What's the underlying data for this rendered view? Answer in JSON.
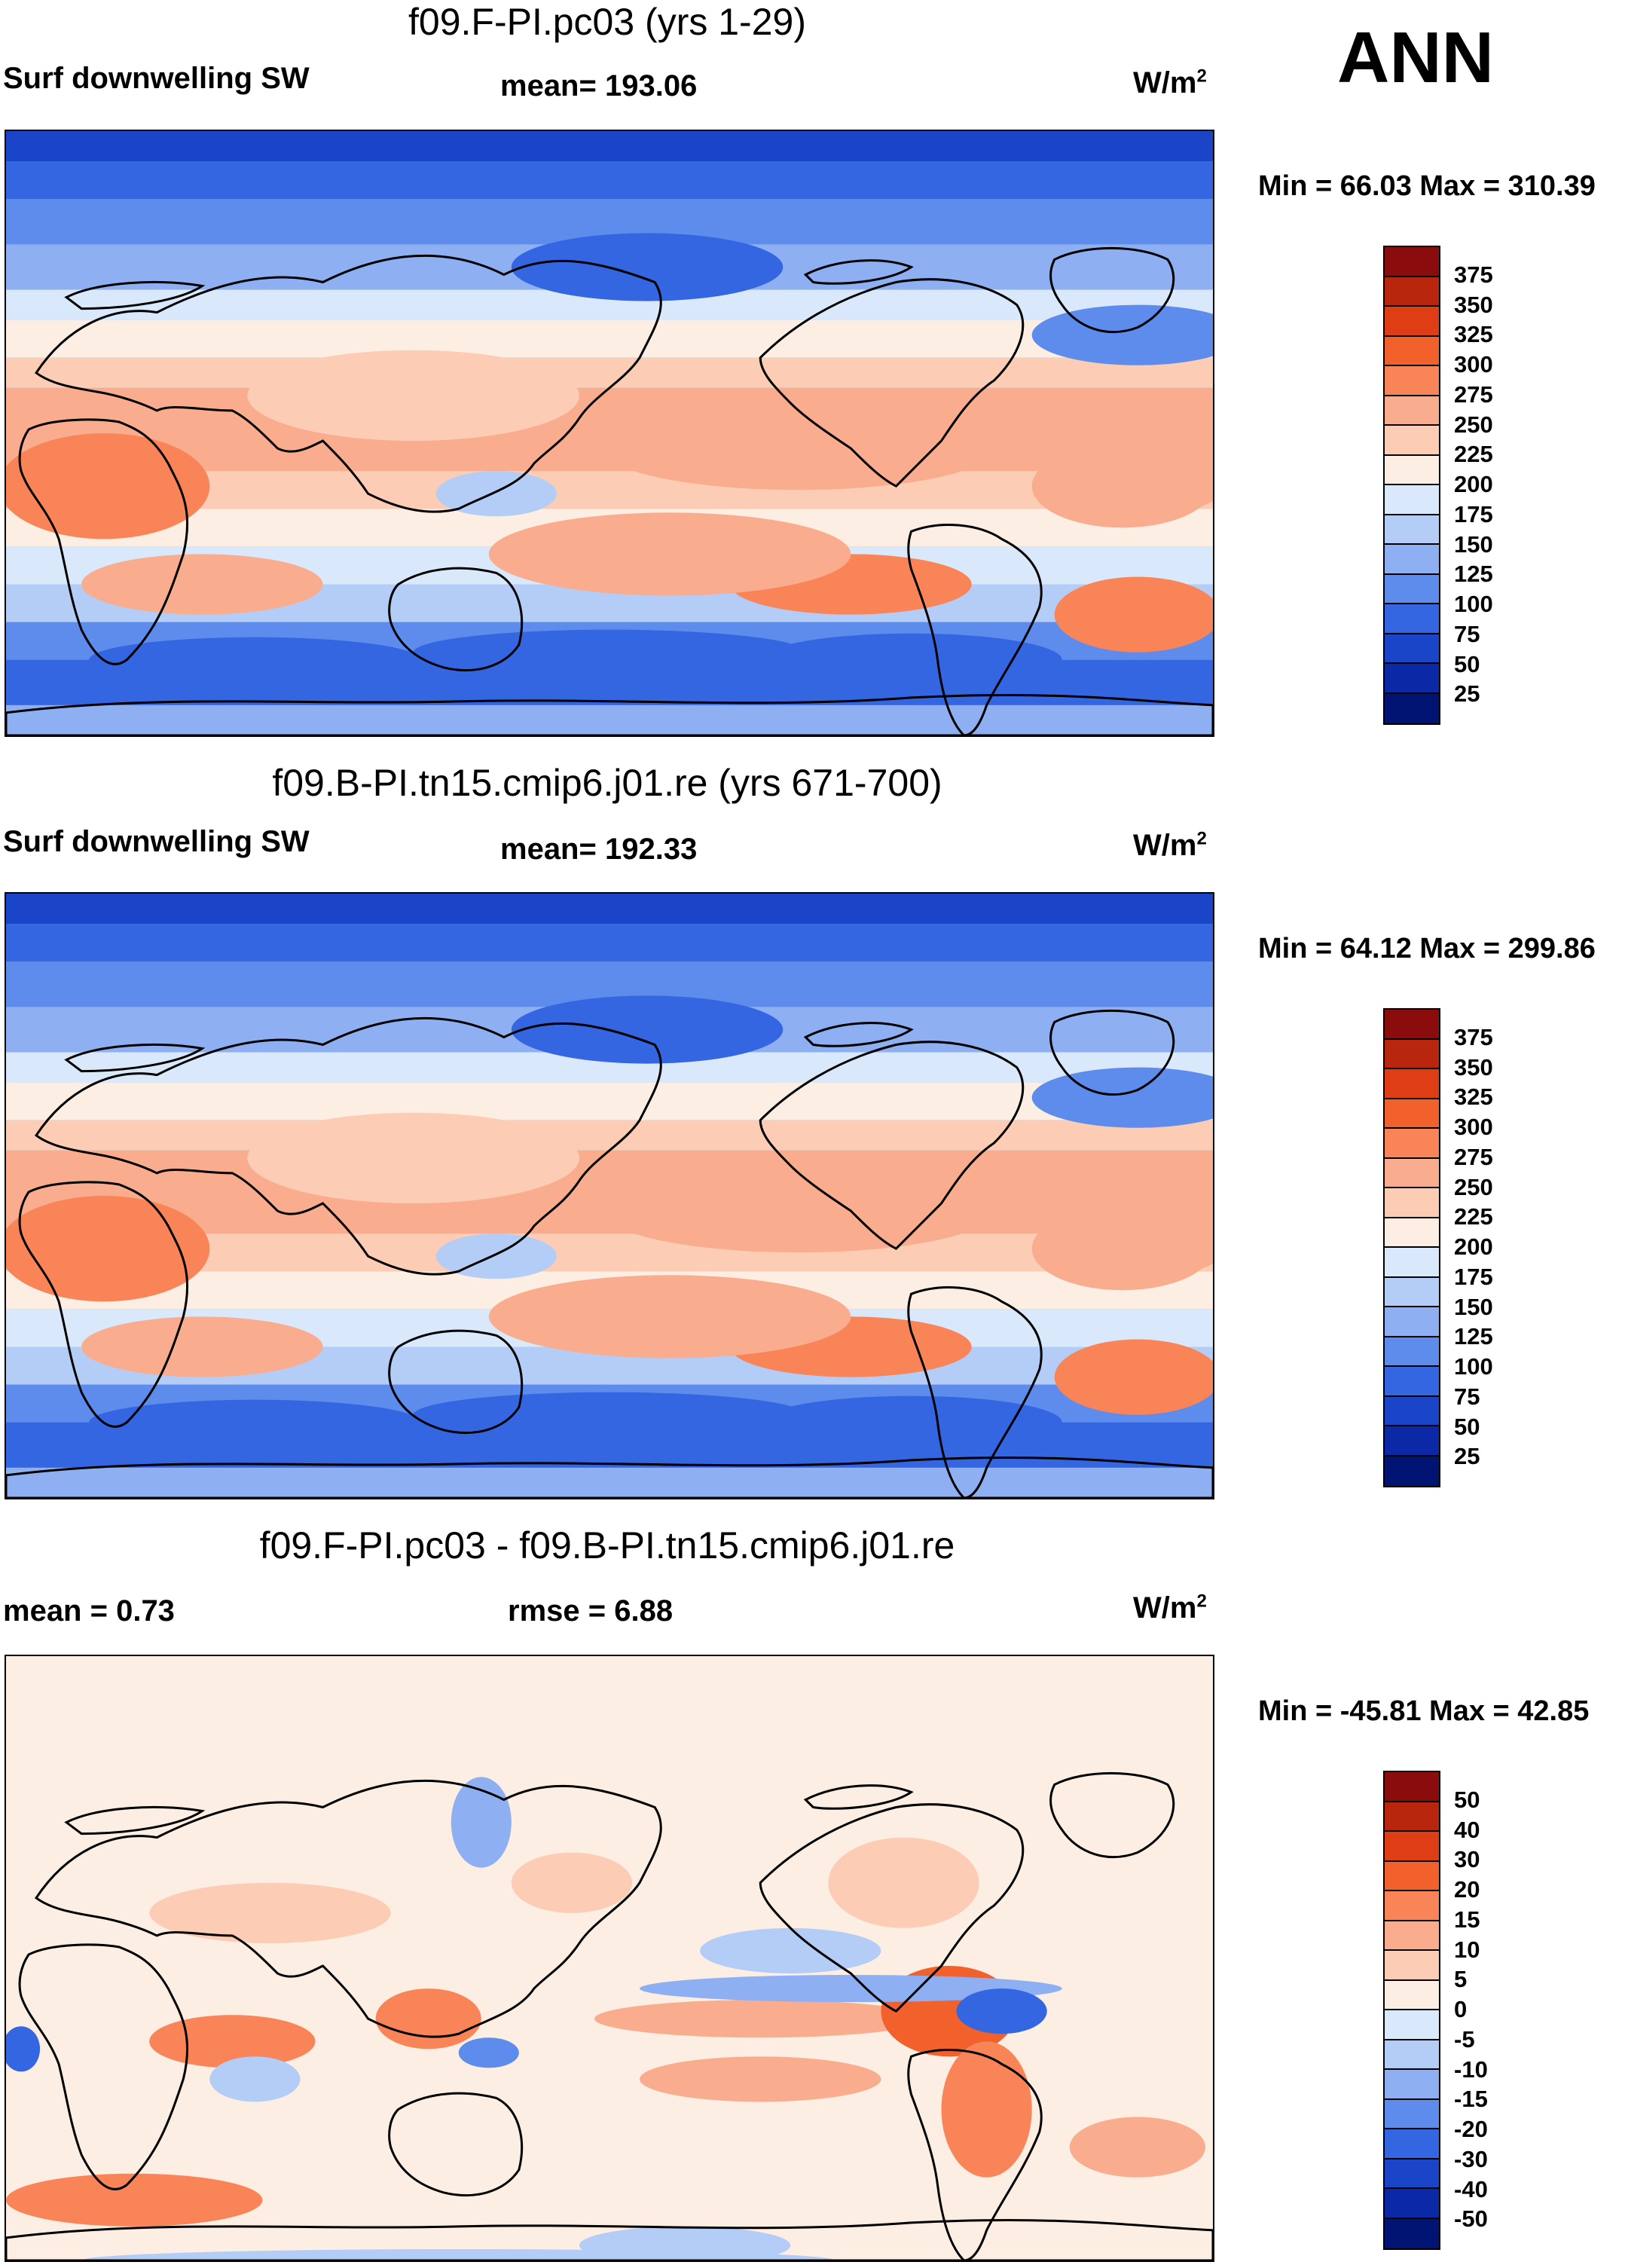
{
  "season": "ANN",
  "panels": [
    {
      "title": "f09.F-PI.pc03 (yrs 1-29)",
      "left": "Surf downwelling SW",
      "mid": "mean= 193.06",
      "units": "W/m",
      "units_sup": "2",
      "minmax": "Min =  66.03 Max = 310.39",
      "colorbar": {
        "labels": [
          "375",
          "350",
          "325",
          "300",
          "275",
          "250",
          "225",
          "200",
          "175",
          "150",
          "125",
          "100",
          "75",
          "50",
          "25"
        ],
        "colors": [
          "#8b0c0c",
          "#b9260e",
          "#df3e14",
          "#f2602c",
          "#f88458",
          "#f9ad8e",
          "#fccdb4",
          "#fdeee3",
          "#d9e8fb",
          "#b4cdf7",
          "#8eb0f3",
          "#5e8cec",
          "#3366e0",
          "#1a45c8",
          "#0b29a6",
          "#011473"
        ]
      },
      "map_style": "absolute"
    },
    {
      "title": "f09.B-PI.tn15.cmip6.j01.re (yrs 671-700)",
      "left": "Surf downwelling SW",
      "mid": "mean= 192.33",
      "units": "W/m",
      "units_sup": "2",
      "minmax": "Min =  64.12 Max = 299.86",
      "colorbar": {
        "labels": [
          "375",
          "350",
          "325",
          "300",
          "275",
          "250",
          "225",
          "200",
          "175",
          "150",
          "125",
          "100",
          "75",
          "50",
          "25"
        ],
        "colors": [
          "#8b0c0c",
          "#b9260e",
          "#df3e14",
          "#f2602c",
          "#f88458",
          "#f9ad8e",
          "#fccdb4",
          "#fdeee3",
          "#d9e8fb",
          "#b4cdf7",
          "#8eb0f3",
          "#5e8cec",
          "#3366e0",
          "#1a45c8",
          "#0b29a6",
          "#011473"
        ]
      },
      "map_style": "absolute"
    },
    {
      "title": "f09.F-PI.pc03 - f09.B-PI.tn15.cmip6.j01.re",
      "left": "mean =   0.73",
      "mid": "rmse =   6.88",
      "units": "W/m",
      "units_sup": "2",
      "minmax": "Min = -45.81 Max =  42.85",
      "colorbar": {
        "labels": [
          "50",
          "40",
          "30",
          "20",
          "15",
          "10",
          "5",
          "0",
          "-5",
          "-10",
          "-15",
          "-20",
          "-30",
          "-40",
          "-50"
        ],
        "colors": [
          "#8b0c0c",
          "#b9260e",
          "#df3e14",
          "#f2602c",
          "#f88458",
          "#f9ad8e",
          "#fccdb4",
          "#fdeee3",
          "#d9e8fb",
          "#b4cdf7",
          "#8eb0f3",
          "#5e8cec",
          "#3366e0",
          "#1a45c8",
          "#0b29a6",
          "#011473"
        ]
      },
      "map_style": "difference"
    }
  ]
}
